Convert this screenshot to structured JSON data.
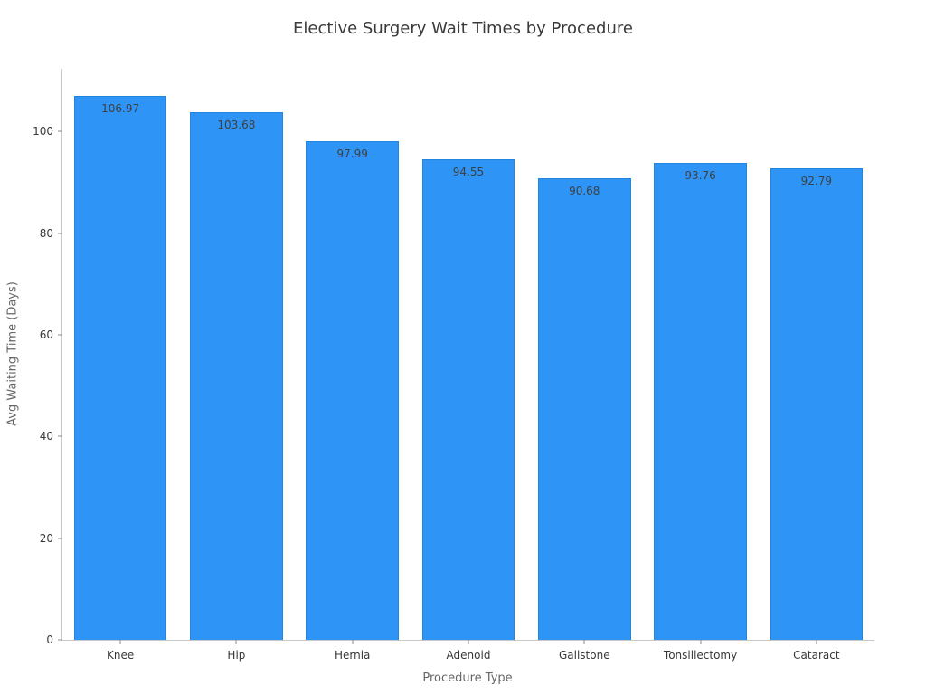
{
  "chart_data": {
    "type": "bar",
    "title": "Elective Surgery Wait Times by Procedure",
    "xlabel": "Procedure Type",
    "ylabel": "Avg Waiting Time (Days)",
    "categories": [
      "Knee",
      "Hip",
      "Hernia",
      "Adenoid",
      "Gallstone",
      "Tonsillectomy",
      "Cataract"
    ],
    "values": [
      106.97,
      103.68,
      97.99,
      94.55,
      90.68,
      93.76,
      92.79
    ],
    "value_labels": [
      "106.97",
      "103.68",
      "97.99",
      "94.55",
      "90.68",
      "93.76",
      "92.79"
    ],
    "yticks": [
      0,
      20,
      40,
      60,
      80,
      100
    ],
    "ylim": [
      0,
      112.3
    ],
    "grid": false,
    "legend": null,
    "background_color": "#ffffff",
    "bar_color": "#2E94F5",
    "bar_edge_color": "#2384dd",
    "spine_color": "#c9c9c9"
  }
}
